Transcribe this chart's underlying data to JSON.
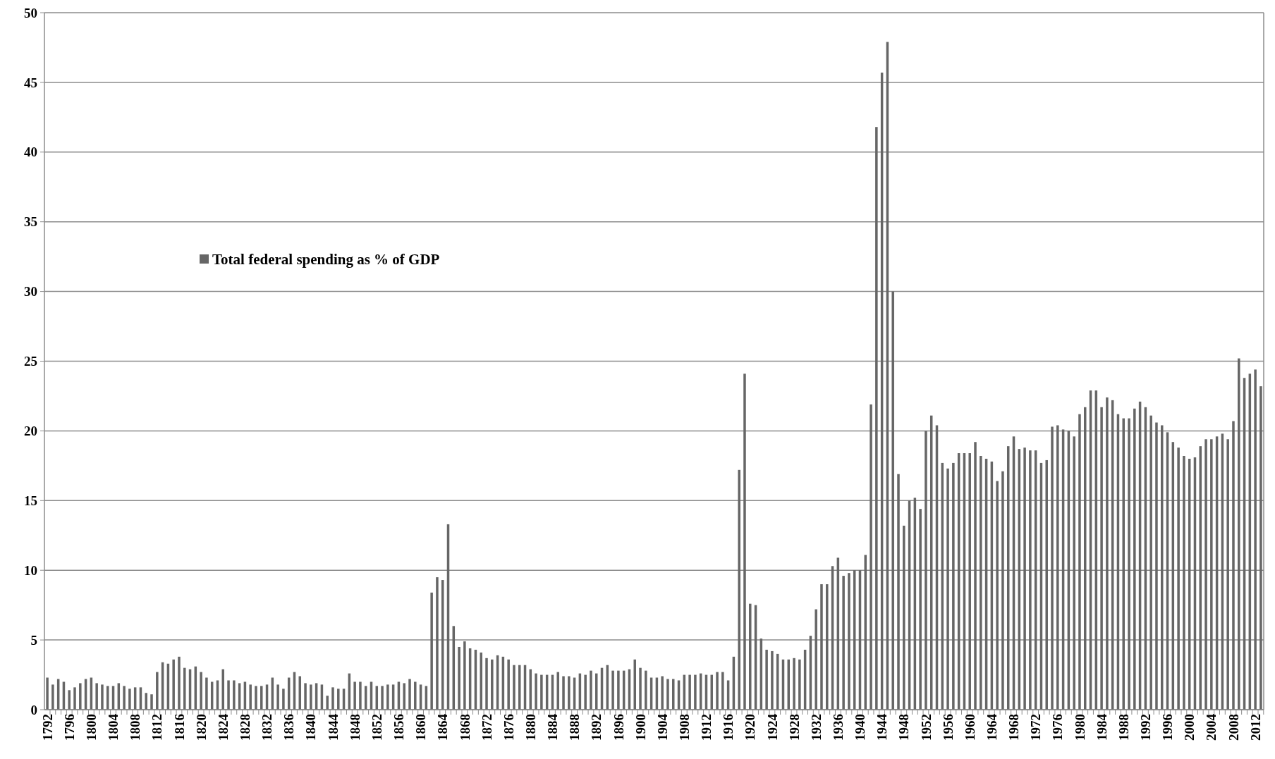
{
  "chart_data": {
    "type": "bar",
    "legend": "left",
    "grid": "y",
    "ylim": [
      0,
      50
    ],
    "yticks": [
      0,
      5,
      10,
      15,
      20,
      25,
      30,
      35,
      40,
      45,
      50
    ],
    "categories": [
      "1792",
      null,
      null,
      null,
      "1796",
      null,
      null,
      null,
      "1800",
      null,
      null,
      null,
      "1804",
      null,
      null,
      null,
      "1808",
      null,
      null,
      null,
      "1812",
      null,
      null,
      null,
      "1816",
      null,
      null,
      null,
      "1820",
      null,
      null,
      null,
      "1824",
      null,
      null,
      null,
      "1828",
      null,
      null,
      null,
      "1832",
      null,
      null,
      null,
      "1836",
      null,
      null,
      null,
      "1840",
      null,
      null,
      null,
      "1844",
      null,
      null,
      null,
      "1848",
      null,
      null,
      null,
      "1852",
      null,
      null,
      null,
      "1856",
      null,
      null,
      null,
      "1860",
      null,
      null,
      null,
      "1864",
      null,
      null,
      null,
      "1868",
      null,
      null,
      null,
      "1872",
      null,
      null,
      null,
      "1876",
      null,
      null,
      null,
      "1880",
      null,
      null,
      null,
      "1884",
      null,
      null,
      null,
      "1888",
      null,
      null,
      null,
      "1892",
      null,
      null,
      null,
      "1896",
      null,
      null,
      null,
      "1900",
      null,
      null,
      null,
      "1904",
      null,
      null,
      null,
      "1908",
      null,
      null,
      null,
      "1912",
      null,
      null,
      null,
      "1916",
      null,
      null,
      null,
      "1920",
      null,
      null,
      null,
      "1924",
      null,
      null,
      null,
      "1928",
      null,
      null,
      null,
      "1932",
      null,
      null,
      null,
      "1936",
      null,
      null,
      null,
      "1940",
      null,
      null,
      null,
      "1944",
      null,
      null,
      null,
      "1948",
      null,
      null,
      null,
      "1952",
      null,
      null,
      null,
      "1956",
      null,
      null,
      null,
      "1960",
      null,
      null,
      null,
      "1964",
      null,
      null,
      null,
      "1968",
      null,
      null,
      null,
      "1972",
      null,
      null,
      null,
      "1976",
      null,
      null,
      null,
      "1980",
      null,
      null,
      null,
      "1984",
      null,
      null,
      null,
      "1988",
      null,
      null,
      null,
      "1992",
      null,
      null,
      null,
      "1996",
      null,
      null,
      null,
      "2000",
      null,
      null,
      null,
      "2004",
      null,
      null,
      null,
      "2008",
      null,
      null,
      null,
      "2012",
      null
    ],
    "series": [
      {
        "name": "Total federal spending as % of GDP",
        "color": "#666666",
        "values": [
          2.3,
          1.8,
          2.2,
          2.0,
          1.4,
          1.6,
          1.9,
          2.2,
          2.3,
          1.9,
          1.8,
          1.7,
          1.7,
          1.9,
          1.7,
          1.5,
          1.6,
          1.6,
          1.2,
          1.1,
          2.7,
          3.4,
          3.3,
          3.6,
          3.8,
          3.0,
          2.9,
          3.1,
          2.7,
          2.3,
          2.0,
          2.1,
          2.9,
          2.1,
          2.1,
          1.9,
          2.0,
          1.8,
          1.7,
          1.7,
          1.8,
          2.3,
          1.8,
          1.5,
          2.3,
          2.7,
          2.4,
          1.9,
          1.8,
          1.9,
          1.8,
          1.0,
          1.6,
          1.5,
          1.5,
          2.6,
          2.0,
          2.0,
          1.7,
          2.0,
          1.7,
          1.7,
          1.8,
          1.8,
          2.0,
          1.9,
          2.2,
          2.0,
          1.8,
          1.7,
          8.4,
          9.5,
          9.3,
          13.3,
          6.0,
          4.5,
          4.9,
          4.4,
          4.3,
          4.1,
          3.7,
          3.6,
          3.9,
          3.8,
          3.6,
          3.2,
          3.2,
          3.2,
          2.9,
          2.6,
          2.5,
          2.5,
          2.5,
          2.7,
          2.4,
          2.4,
          2.3,
          2.6,
          2.5,
          2.8,
          2.6,
          3.0,
          3.2,
          2.8,
          2.8,
          2.8,
          2.9,
          3.6,
          3.0,
          2.8,
          2.3,
          2.3,
          2.4,
          2.2,
          2.2,
          2.1,
          2.5,
          2.5,
          2.5,
          2.6,
          2.5,
          2.5,
          2.7,
          2.7,
          2.1,
          3.8,
          17.2,
          24.1,
          7.6,
          7.5,
          5.1,
          4.3,
          4.2,
          4.0,
          3.6,
          3.6,
          3.7,
          3.6,
          4.3,
          5.3,
          7.2,
          9.0,
          9.0,
          10.3,
          10.9,
          9.6,
          9.8,
          10.0,
          10.0,
          11.1,
          21.9,
          41.8,
          45.7,
          47.9,
          30.0,
          16.9,
          13.2,
          15.0,
          15.2,
          14.4,
          20.0,
          21.1,
          20.4,
          17.7,
          17.3,
          17.7,
          18.4,
          18.4,
          18.4,
          19.2,
          18.2,
          18.0,
          17.8,
          16.4,
          17.1,
          18.9,
          19.6,
          18.7,
          18.8,
          18.6,
          18.6,
          17.7,
          17.9,
          20.3,
          20.4,
          20.1,
          20.0,
          19.6,
          21.2,
          21.7,
          22.9,
          22.9,
          21.7,
          22.4,
          22.2,
          21.2,
          20.9,
          20.9,
          21.6,
          22.1,
          21.7,
          21.1,
          20.6,
          20.4,
          19.9,
          19.2,
          18.8,
          18.2,
          18.0,
          18.1,
          18.9,
          19.4,
          19.4,
          19.6,
          19.8,
          19.4,
          20.7,
          25.2,
          23.8,
          24.1,
          24.4,
          23.2
        ]
      }
    ]
  }
}
